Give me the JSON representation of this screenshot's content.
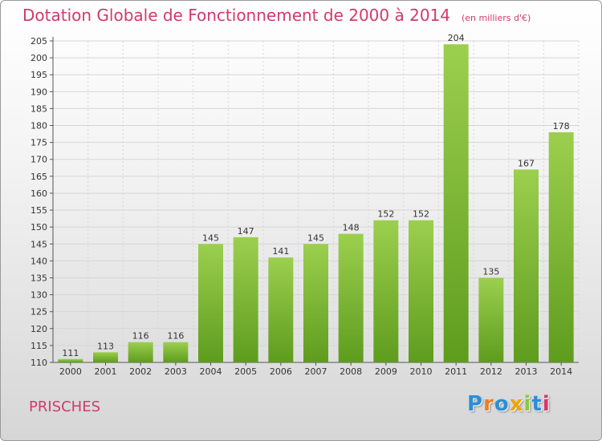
{
  "header": {
    "title": "Dotation Globale de Fonctionnement de 2000 à 2014",
    "unit_note": "(en milliers d'€)"
  },
  "footer": {
    "commune": "PRISCHES"
  },
  "logo": {
    "text": "Proxiti",
    "letters": [
      {
        "ch": "P",
        "color": "#2a8fd6"
      },
      {
        "ch": "r",
        "color": "#e8802a"
      },
      {
        "ch": "o",
        "color": "#2a8fd6"
      },
      {
        "ch": "x",
        "color": "#f0a500"
      },
      {
        "ch": "i",
        "color": "#8cc63f"
      },
      {
        "ch": "t",
        "color": "#2a8fd6"
      },
      {
        "ch": "i",
        "color": "#d2396e"
      }
    ]
  },
  "colors": {
    "bar_top": "#9ccf4e",
    "bar_bottom": "#5e9c1e",
    "title": "#d2396e",
    "grid": "#d6d6d6"
  },
  "chart_data": {
    "type": "bar",
    "categories": [
      "2000",
      "2001",
      "2002",
      "2003",
      "2004",
      "2005",
      "2006",
      "2007",
      "2008",
      "2009",
      "2010",
      "2011",
      "2012",
      "2013",
      "2014"
    ],
    "values": [
      111,
      113,
      116,
      116,
      145,
      147,
      141,
      145,
      148,
      152,
      152,
      204,
      135,
      167,
      178
    ],
    "title": "Dotation Globale de Fonctionnement de 2000 à 2014",
    "xlabel": "",
    "ylabel": "",
    "ylim": [
      110,
      205
    ],
    "yticks": [
      110,
      115,
      120,
      125,
      130,
      135,
      140,
      145,
      150,
      155,
      160,
      165,
      170,
      175,
      180,
      185,
      190,
      195,
      200,
      205
    ],
    "grid": true,
    "legend": "none"
  }
}
